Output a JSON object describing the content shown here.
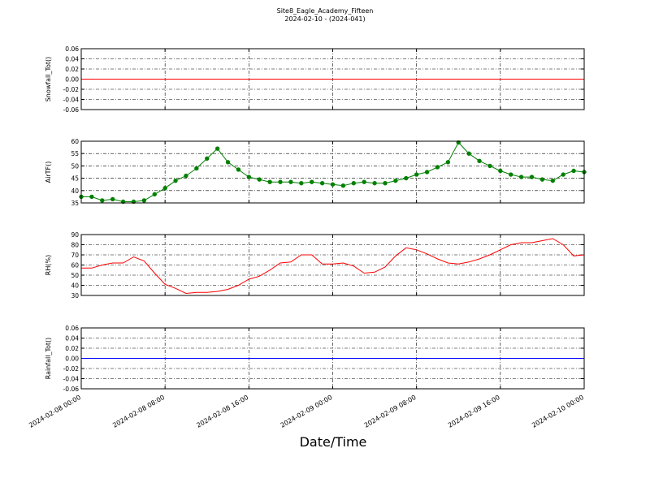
{
  "title": "Site8_Eagle_Academy_Fifteen",
  "subtitle": "2024-02-10 - (2024-041)",
  "xlabel": "Date/Time",
  "chart_data": [
    {
      "type": "line",
      "ylabel": "Snowfall_Tot()",
      "color": "#ff0000",
      "markers": false,
      "grid": true,
      "x": [
        "2024-02-08 00:00",
        "2024-02-10 00:00"
      ],
      "values": [
        0,
        0
      ],
      "xlim": [
        "2024-02-08 00:00",
        "2024-02-10 00:00"
      ],
      "xticks": [
        "2024-02-08 00:00",
        "2024-02-08 08:00",
        "2024-02-08 16:00",
        "2024-02-09 00:00",
        "2024-02-09 08:00",
        "2024-02-09 16:00",
        "2024-02-10 00:00"
      ],
      "ylim": [
        -0.06,
        0.06
      ],
      "yticks": [
        {
          "value": -0.06,
          "label": "-0.06"
        },
        {
          "value": -0.04,
          "label": "-0.04"
        },
        {
          "value": -0.02,
          "label": "-0.02"
        },
        {
          "value": 0,
          "label": "0.00"
        },
        {
          "value": 0.02,
          "label": "0.02"
        },
        {
          "value": 0.04,
          "label": "0.04"
        },
        {
          "value": 0.06,
          "label": "0.06"
        }
      ]
    },
    {
      "type": "line",
      "ylabel": "AirTF()",
      "color": "#008000",
      "markers": true,
      "grid": true,
      "x": [
        "2024-02-08 00:00",
        "2024-02-08 01:00",
        "2024-02-08 02:00",
        "2024-02-08 03:00",
        "2024-02-08 04:00",
        "2024-02-08 05:00",
        "2024-02-08 06:00",
        "2024-02-08 07:00",
        "2024-02-08 08:00",
        "2024-02-08 09:00",
        "2024-02-08 10:00",
        "2024-02-08 11:00",
        "2024-02-08 12:00",
        "2024-02-08 13:00",
        "2024-02-08 14:00",
        "2024-02-08 15:00",
        "2024-02-08 16:00",
        "2024-02-08 17:00",
        "2024-02-08 18:00",
        "2024-02-08 19:00",
        "2024-02-08 20:00",
        "2024-02-08 21:00",
        "2024-02-08 22:00",
        "2024-02-08 23:00",
        "2024-02-09 00:00",
        "2024-02-09 01:00",
        "2024-02-09 02:00",
        "2024-02-09 03:00",
        "2024-02-09 04:00",
        "2024-02-09 05:00",
        "2024-02-09 06:00",
        "2024-02-09 07:00",
        "2024-02-09 08:00",
        "2024-02-09 09:00",
        "2024-02-09 10:00",
        "2024-02-09 11:00",
        "2024-02-09 12:00",
        "2024-02-09 13:00",
        "2024-02-09 14:00",
        "2024-02-09 15:00",
        "2024-02-09 16:00",
        "2024-02-09 17:00",
        "2024-02-09 18:00",
        "2024-02-09 19:00",
        "2024-02-09 20:00",
        "2024-02-09 21:00",
        "2024-02-09 22:00",
        "2024-02-09 23:00",
        "2024-02-10 00:00"
      ],
      "values": [
        37.5,
        37.5,
        36,
        36.5,
        35.5,
        35.5,
        36,
        38.5,
        41,
        44,
        46,
        49,
        53,
        57,
        51.5,
        48.5,
        45.5,
        44.5,
        43.5,
        43.5,
        43.5,
        43,
        43.5,
        43,
        42.5,
        42,
        43,
        43.5,
        43,
        43,
        44,
        45,
        46.5,
        47.5,
        49.5,
        51.5,
        59.5,
        55,
        52,
        50,
        48,
        46.5,
        45.5,
        45.5,
        44.5,
        44,
        46.5,
        48,
        47.5
      ],
      "xlim": [
        "2024-02-08 00:00",
        "2024-02-10 00:00"
      ],
      "xticks": [
        "2024-02-08 00:00",
        "2024-02-08 08:00",
        "2024-02-08 16:00",
        "2024-02-09 00:00",
        "2024-02-09 08:00",
        "2024-02-09 16:00",
        "2024-02-10 00:00"
      ],
      "ylim": [
        35,
        60
      ],
      "yticks": [
        35,
        40,
        45,
        50,
        55,
        60
      ]
    },
    {
      "type": "line",
      "ylabel": "RH(%)",
      "color": "#ff0000",
      "markers": false,
      "grid": true,
      "x": [
        "2024-02-08 00:00",
        "2024-02-08 01:00",
        "2024-02-08 02:00",
        "2024-02-08 03:00",
        "2024-02-08 04:00",
        "2024-02-08 05:00",
        "2024-02-08 06:00",
        "2024-02-08 07:00",
        "2024-02-08 08:00",
        "2024-02-08 09:00",
        "2024-02-08 10:00",
        "2024-02-08 11:00",
        "2024-02-08 12:00",
        "2024-02-08 13:00",
        "2024-02-08 14:00",
        "2024-02-08 15:00",
        "2024-02-08 16:00",
        "2024-02-08 17:00",
        "2024-02-08 18:00",
        "2024-02-08 19:00",
        "2024-02-08 20:00",
        "2024-02-08 21:00",
        "2024-02-08 22:00",
        "2024-02-08 23:00",
        "2024-02-09 00:00",
        "2024-02-09 01:00",
        "2024-02-09 02:00",
        "2024-02-09 03:00",
        "2024-02-09 04:00",
        "2024-02-09 05:00",
        "2024-02-09 06:00",
        "2024-02-09 07:00",
        "2024-02-09 08:00",
        "2024-02-09 09:00",
        "2024-02-09 10:00",
        "2024-02-09 11:00",
        "2024-02-09 12:00",
        "2024-02-09 13:00",
        "2024-02-09 14:00",
        "2024-02-09 15:00",
        "2024-02-09 16:00",
        "2024-02-09 17:00",
        "2024-02-09 18:00",
        "2024-02-09 19:00",
        "2024-02-09 20:00",
        "2024-02-09 21:00",
        "2024-02-09 22:00",
        "2024-02-09 23:00",
        "2024-02-10 00:00"
      ],
      "values": [
        57,
        57,
        60,
        62,
        62,
        68,
        64,
        52,
        41,
        37,
        32,
        33,
        33,
        34,
        36,
        40,
        46,
        49,
        55,
        62,
        63,
        70,
        70,
        61,
        61,
        62,
        59,
        52,
        53,
        58,
        69,
        77,
        75,
        71,
        66,
        62,
        61,
        63,
        66,
        70,
        75,
        80,
        82,
        82,
        84,
        86,
        80,
        69,
        70
      ],
      "xlim": [
        "2024-02-08 00:00",
        "2024-02-10 00:00"
      ],
      "xticks": [
        "2024-02-08 00:00",
        "2024-02-08 08:00",
        "2024-02-08 16:00",
        "2024-02-09 00:00",
        "2024-02-09 08:00",
        "2024-02-09 16:00",
        "2024-02-10 00:00"
      ],
      "ylim": [
        30,
        90
      ],
      "yticks": [
        30,
        40,
        50,
        60,
        70,
        80,
        90
      ]
    },
    {
      "type": "line",
      "ylabel": "Rainfall_Tot()",
      "color": "#0000ff",
      "markers": false,
      "grid": true,
      "x": [
        "2024-02-08 00:00",
        "2024-02-10 00:00"
      ],
      "values": [
        0,
        0
      ],
      "xlim": [
        "2024-02-08 00:00",
        "2024-02-10 00:00"
      ],
      "xticks": [
        "2024-02-08 00:00",
        "2024-02-08 08:00",
        "2024-02-08 16:00",
        "2024-02-09 00:00",
        "2024-02-09 08:00",
        "2024-02-09 16:00",
        "2024-02-10 00:00"
      ],
      "ylim": [
        -0.06,
        0.06
      ],
      "yticks": [
        {
          "value": -0.06,
          "label": "-0.06"
        },
        {
          "value": -0.04,
          "label": "-0.04"
        },
        {
          "value": -0.02,
          "label": "-0.02"
        },
        {
          "value": 0,
          "label": "0.00"
        },
        {
          "value": 0.02,
          "label": "0.02"
        },
        {
          "value": 0.04,
          "label": "0.04"
        },
        {
          "value": 0.06,
          "label": "0.06"
        }
      ]
    }
  ]
}
